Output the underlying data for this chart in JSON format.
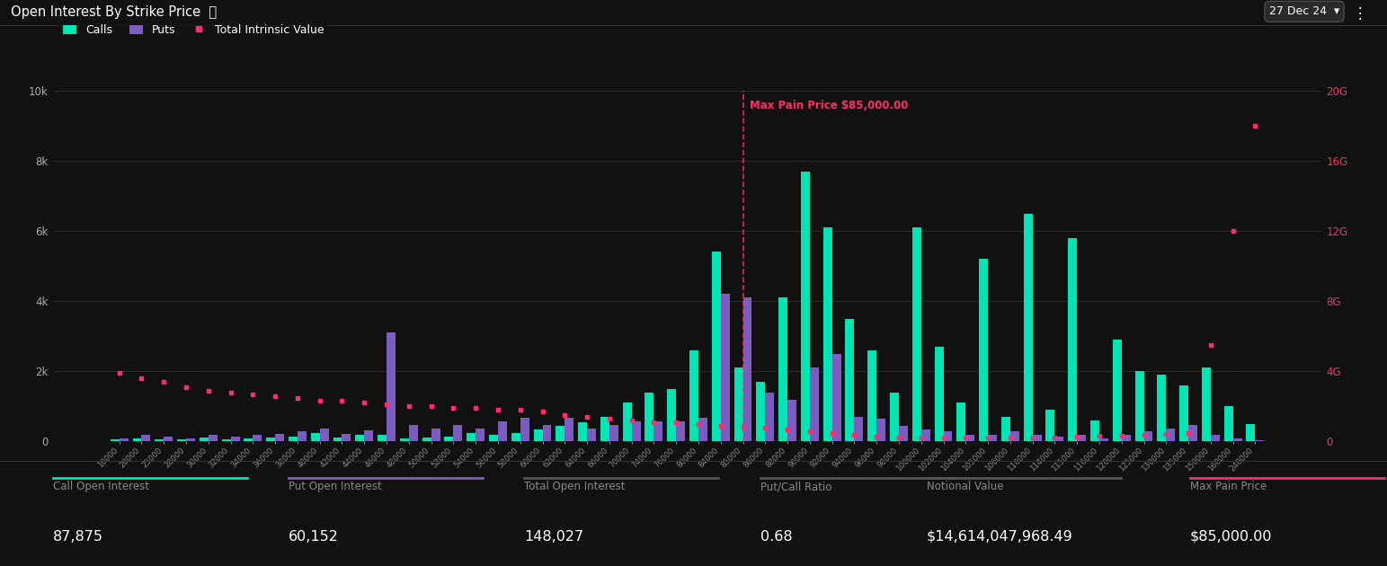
{
  "title": "Open Interest By Strike Price",
  "title_info": "ⓘ",
  "date_label": "27 Dec 24",
  "bg_color": "#111111",
  "calls_color": "#00e5b4",
  "puts_color": "#7c5cbf",
  "intrinsic_color": "#ff2d6b",
  "max_pain_price": 85000,
  "max_pain_label": "Max Pain Price $85,000.00",
  "call_open_interest": "87,875",
  "put_open_interest": "60,152",
  "total_open_interest": "148,027",
  "put_call_ratio": "0.68",
  "notional_value": "$14,614,047,968.49",
  "max_pain_display": "$85,000.00",
  "ylim_left": [
    0,
    10000
  ],
  "ylim_right": [
    0,
    200
  ],
  "strikes": [
    10000,
    20000,
    25000,
    28000,
    30000,
    32000,
    34000,
    36000,
    38000,
    40000,
    42000,
    44000,
    46000,
    48000,
    50000,
    52000,
    54000,
    56000,
    58000,
    60000,
    62000,
    64000,
    66000,
    70000,
    74000,
    76000,
    80000,
    84000,
    85000,
    86000,
    88000,
    90000,
    92000,
    94000,
    96000,
    98000,
    100000,
    102000,
    104000,
    105000,
    106000,
    110000,
    114000,
    115000,
    116000,
    120000,
    125000,
    130000,
    135000,
    150000,
    160000,
    240000
  ],
  "calls": [
    50,
    80,
    60,
    50,
    120,
    70,
    80,
    100,
    150,
    250,
    120,
    180,
    200,
    80,
    120,
    150,
    250,
    180,
    250,
    350,
    450,
    550,
    700,
    1100,
    1400,
    1500,
    2600,
    5400,
    2100,
    1700,
    4100,
    7700,
    6100,
    3500,
    2600,
    1400,
    6100,
    2700,
    1100,
    5200,
    700,
    6500,
    900,
    5800,
    600,
    2900,
    2000,
    1900,
    1600,
    2100,
    1000,
    500
  ],
  "puts": [
    80,
    180,
    130,
    90,
    180,
    130,
    180,
    220,
    280,
    380,
    220,
    320,
    3100,
    480,
    380,
    480,
    380,
    580,
    680,
    480,
    680,
    380,
    480,
    580,
    580,
    580,
    680,
    4200,
    4100,
    1400,
    1200,
    2100,
    2500,
    700,
    650,
    450,
    350,
    280,
    180,
    180,
    280,
    180,
    130,
    180,
    90,
    180,
    280,
    380,
    480,
    180,
    90,
    40
  ],
  "intrinsic_x_idx": [
    0,
    1,
    2,
    3,
    4,
    5,
    6,
    7,
    8,
    9,
    10,
    11,
    12,
    13,
    14,
    15,
    16,
    17,
    18,
    19,
    20,
    21,
    22,
    23,
    24,
    25,
    26,
    27,
    28,
    29,
    30,
    31,
    32,
    33,
    34,
    35,
    36,
    37,
    38,
    39,
    40,
    41,
    42,
    43,
    44,
    45,
    46,
    47,
    48,
    49,
    50,
    51
  ],
  "intrinsic_right": [
    39,
    36,
    34,
    31,
    29,
    28,
    27,
    26,
    25,
    23,
    23,
    22,
    21,
    20,
    20,
    19,
    19,
    18,
    18,
    17,
    15,
    14,
    13,
    12,
    11,
    11,
    10,
    9,
    8.5,
    8,
    7,
    6,
    5,
    4,
    3,
    2.5,
    2.5,
    2,
    2,
    2,
    2,
    2.5,
    2.5,
    3,
    3.2,
    3.5,
    4,
    4.5,
    5,
    55,
    120,
    180
  ]
}
